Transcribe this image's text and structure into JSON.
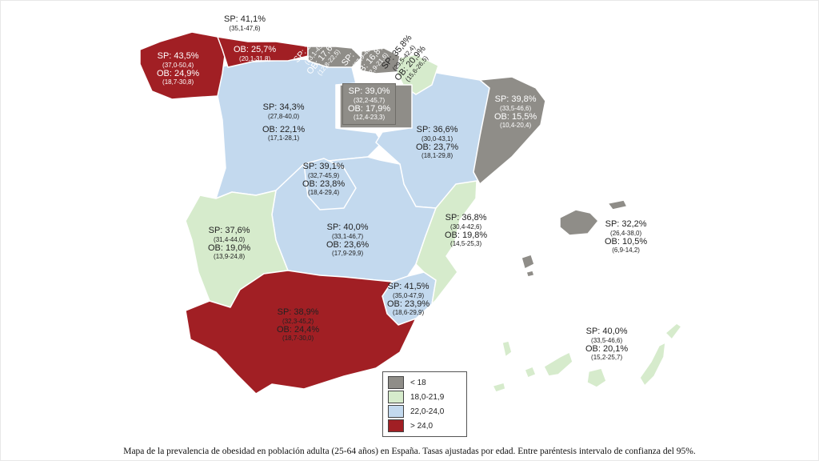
{
  "colors": {
    "lt18": "#8f8d88",
    "r18_21": "#d6ebcc",
    "r22_24": "#c3d9ee",
    "gt24": "#a11f24"
  },
  "regions": {
    "galicia": {
      "sp": "SP: 43,5%",
      "sp_ci": "(37,0-50,4)",
      "ob": "OB: 24,9%",
      "ob_ci": "(18,7-30,8)"
    },
    "asturias": {
      "sp": "SP: 41,1%",
      "sp_ci": "(35,1-47,6)",
      "ob": "OB: 25,7%",
      "ob_ci": "(20,1-31,8)"
    },
    "cantabria": {
      "sp": "SP: 39,3%",
      "sp_ci": "(33,1-45,8)",
      "ob": "OB: 17,6%",
      "ob_ci": "(12,8-22,5)"
    },
    "pais_vasco": {
      "sp": "SP: 33,9%",
      "sp_ci": "(27,9-40,4)",
      "ob": "OB: 16,8%",
      "ob_ci": "(12,9-21,6)"
    },
    "navarra": {
      "sp": "SP: 35,8%",
      "sp_ci": "(29,5-42,4)",
      "ob": "OB: 20,9%",
      "ob_ci": "(15,6-26,5)"
    },
    "la_rioja": {
      "sp": "SP: 39,0%",
      "sp_ci": "(32,2-45,7)",
      "ob": "OB: 17,9%",
      "ob_ci": "(12,4-23,3)"
    },
    "castilla_leon": {
      "sp": "SP: 34,3%",
      "sp_ci": "(27,8-40,0)",
      "ob": "OB: 22,1%",
      "ob_ci": "(17,1-28,1)"
    },
    "aragon": {
      "sp": "SP: 36,6%",
      "sp_ci": "(30,0-43,1)",
      "ob": "OB: 23,7%",
      "ob_ci": "(18,1-29,8)"
    },
    "cataluna": {
      "sp": "SP: 39,8%",
      "sp_ci": "(33,5-46,6)",
      "ob": "OB: 15,5%",
      "ob_ci": "(10,4-20,4)"
    },
    "madrid": {
      "sp": "SP: 39,1%",
      "sp_ci": "(32,7-45,9)",
      "ob": "OB: 23,8%",
      "ob_ci": "(18,4-29,4)"
    },
    "castilla_la_mancha": {
      "sp": "SP: 40,0%",
      "sp_ci": "(33,1-46,7)",
      "ob": "OB: 23,6%",
      "ob_ci": "(17,9-29,9)"
    },
    "extremadura": {
      "sp": "SP: 37,6%",
      "sp_ci": "(31,4-44,0)",
      "ob": "OB: 19,0%",
      "ob_ci": "(13,9-24,8)"
    },
    "valencia": {
      "sp": "SP: 36,8%",
      "sp_ci": "(30,4-42,6)",
      "ob": "OB: 19,8%",
      "ob_ci": "(14,5-25,3)"
    },
    "baleares": {
      "sp": "SP: 32,2%",
      "sp_ci": "(26,4-38,0)",
      "ob": "OB: 10,5%",
      "ob_ci": "(6,9-14,2)"
    },
    "murcia": {
      "sp": "SP: 41,5%",
      "sp_ci": "(35,0-47,9)",
      "ob": "OB: 23,9%",
      "ob_ci": "(18,6-29,9)"
    },
    "andalucia": {
      "sp": "SP: 38,9%",
      "sp_ci": "(32,3-45,2)",
      "ob": "OB: 24,4%",
      "ob_ci": "(18,7-30,0)"
    },
    "canarias": {
      "sp": "SP: 40,0%",
      "sp_ci": "(33,5-46,6)",
      "ob": "OB: 20,1%",
      "ob_ci": "(15,2-25,7)"
    }
  },
  "legend": [
    {
      "label": "< 18",
      "color": "#8f8d88"
    },
    {
      "label": "18,0-21,9",
      "color": "#d6ebcc"
    },
    {
      "label": "22,0-24,0",
      "color": "#c3d9ee"
    },
    {
      "label": "> 24,0",
      "color": "#a11f24"
    }
  ],
  "caption": "Mapa de la prevalencia de obesidad en población adulta (25-64 años) en España. Tasas ajustadas por edad. Entre paréntesis intervalo de confianza del 95%."
}
